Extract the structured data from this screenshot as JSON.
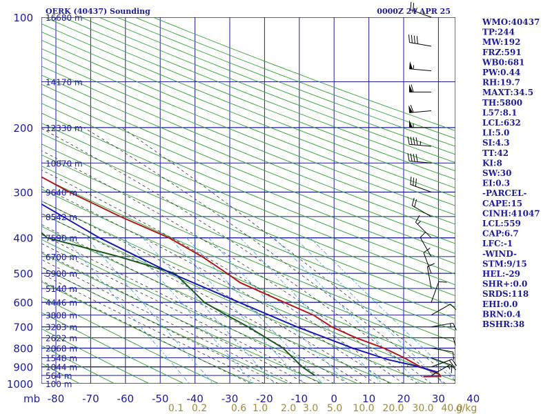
{
  "header": {
    "station": "OERK (40437) Sounding",
    "time": "0000Z 24 APR 25"
  },
  "indices": [
    "WMO:40437",
    "TP:244",
    "MW:192",
    "FRZ:591",
    "WB0:681",
    "PW:0.44",
    "RH:19.7",
    "MAXT:34.5",
    "TH:5800",
    "L57:8.1",
    "LCL:632",
    "LI:5.0",
    "SI:4.3",
    "TT:42",
    "KI:8",
    "SW:30",
    "EI:0.3",
    "-PARCEL-",
    "CAPE:15",
    "CINH:41047",
    "LCL:559",
    "CAP:6.7",
    "LFC:-1",
    "-WIND-",
    "STM:9/15",
    "HEL:-29",
    "SHR+:0.0",
    "SRDS:118",
    "EHI:0.0",
    "BRN:0.4",
    "BSHR:38"
  ],
  "colors": {
    "grid": "#1c1c9c",
    "dry_adiabat": "#2ca02c",
    "moist_adiabat": "#333333",
    "mixing_ratio": "#4aa3d8",
    "temperature": "#b01818",
    "dewpoint": "#1a5a1a",
    "parcel": "#1818b0",
    "mixing_label": "#a08a3c"
  },
  "chart_data": {
    "type": "skew-t",
    "x_axis_unit_label": "mb",
    "pressure_levels": [
      100,
      200,
      300,
      400,
      500,
      600,
      700,
      800,
      900,
      1000
    ],
    "temperature_ticks": [
      -80,
      -70,
      -60,
      -50,
      -40,
      -30,
      -20,
      -10,
      0,
      10,
      20,
      30,
      40
    ],
    "temperature_tick_labels": [
      "-80",
      "-70",
      "-60",
      "-50",
      "-40",
      "-30",
      "-20",
      "-10",
      "0",
      "10",
      "20",
      "30",
      "40"
    ],
    "height_labels": [
      {
        "p": 100,
        "text": "16680 m"
      },
      {
        "p": 150,
        "text": "14170 m"
      },
      {
        "p": 200,
        "text": "12330 m"
      },
      {
        "p": 250,
        "text": "10870 m"
      },
      {
        "p": 300,
        "text": "9640 m"
      },
      {
        "p": 350,
        "text": "8542 m"
      },
      {
        "p": 400,
        "text": "7590 m"
      },
      {
        "p": 450,
        "text": "6700 m"
      },
      {
        "p": 500,
        "text": "5900 m"
      },
      {
        "p": 550,
        "text": "5140 m"
      },
      {
        "p": 600,
        "text": "4446 m"
      },
      {
        "p": 650,
        "text": "3808 m"
      },
      {
        "p": 700,
        "text": "3203 m"
      },
      {
        "p": 750,
        "text": "2622 m"
      },
      {
        "p": 800,
        "text": "2068 m"
      },
      {
        "p": 850,
        "text": "1548 m"
      },
      {
        "p": 900,
        "text": "1044 m"
      },
      {
        "p": 950,
        "text": "564 m"
      },
      {
        "p": 1000,
        "text": "100 m"
      }
    ],
    "mixing_ratio_labels": [
      "0.1",
      "0.2",
      "0.6",
      "1.0",
      "2.0",
      "3.0",
      "5.0",
      "10.0",
      "20.0",
      "30.0",
      "40.0",
      "g/kg"
    ],
    "mixing_ratio_values": [
      0.1,
      0.2,
      0.6,
      1.0,
      2.0,
      3.0,
      5.0,
      10.0,
      20.0,
      30.0,
      40.0
    ],
    "series": [
      {
        "key": "temperature",
        "points": [
          [
            100,
            -74
          ],
          [
            130,
            -68
          ],
          [
            150,
            -62
          ],
          [
            170,
            -54
          ],
          [
            200,
            -50
          ],
          [
            230,
            -48
          ],
          [
            250,
            -50
          ],
          [
            300,
            -40
          ],
          [
            350,
            -30
          ],
          [
            400,
            -20
          ],
          [
            450,
            -14
          ],
          [
            500,
            -10
          ],
          [
            530,
            -8
          ],
          [
            600,
            1
          ],
          [
            650,
            7
          ],
          [
            700,
            10
          ],
          [
            750,
            15
          ],
          [
            800,
            21
          ],
          [
            850,
            25
          ],
          [
            900,
            28
          ],
          [
            940,
            32
          ],
          [
            955,
            32
          ],
          [
            957,
            27
          ]
        ]
      },
      {
        "key": "dewpoint",
        "points": [
          [
            180,
            -80
          ],
          [
            230,
            -78
          ],
          [
            250,
            -62
          ],
          [
            300,
            -60
          ],
          [
            350,
            -58
          ],
          [
            400,
            -55
          ],
          [
            450,
            -38
          ],
          [
            500,
            -25
          ],
          [
            600,
            -22
          ],
          [
            650,
            -18
          ],
          [
            700,
            -14
          ],
          [
            800,
            -8
          ],
          [
            900,
            -6
          ],
          [
            950,
            -4
          ]
        ]
      },
      {
        "key": "parcel",
        "points": [
          [
            190,
            -80
          ],
          [
            250,
            -65
          ],
          [
            300,
            -54
          ],
          [
            400,
            -40
          ],
          [
            500,
            -26
          ],
          [
            600,
            -12
          ],
          [
            700,
            0
          ],
          [
            800,
            12
          ],
          [
            860,
            20
          ],
          [
            890,
            26
          ],
          [
            930,
            32
          ]
        ]
      }
    ],
    "wind_barbs": [
      {
        "p": 100,
        "dir": 290,
        "spd": 25
      },
      {
        "p": 120,
        "dir": 280,
        "spd": 40
      },
      {
        "p": 140,
        "dir": 275,
        "spd": 55
      },
      {
        "p": 160,
        "dir": 270,
        "spd": 60
      },
      {
        "p": 180,
        "dir": 265,
        "spd": 60
      },
      {
        "p": 200,
        "dir": 270,
        "spd": 55
      },
      {
        "p": 225,
        "dir": 275,
        "spd": 45
      },
      {
        "p": 250,
        "dir": 275,
        "spd": 40
      },
      {
        "p": 300,
        "dir": 290,
        "spd": 30
      },
      {
        "p": 350,
        "dir": 300,
        "spd": 20
      },
      {
        "p": 400,
        "dir": 315,
        "spd": 15
      },
      {
        "p": 450,
        "dir": 330,
        "spd": 10
      },
      {
        "p": 500,
        "dir": 340,
        "spd": 10
      },
      {
        "p": 550,
        "dir": 350,
        "spd": 10
      },
      {
        "p": 600,
        "dir": 20,
        "spd": 10
      },
      {
        "p": 650,
        "dir": 60,
        "spd": 10
      },
      {
        "p": 700,
        "dir": 80,
        "spd": 15
      },
      {
        "p": 750,
        "dir": 90,
        "spd": 10
      },
      {
        "p": 800,
        "dir": 100,
        "spd": 10
      },
      {
        "p": 850,
        "dir": 110,
        "spd": 10
      },
      {
        "p": 900,
        "dir": 70,
        "spd": 20
      },
      {
        "p": 950,
        "dir": 60,
        "spd": 15
      }
    ]
  }
}
